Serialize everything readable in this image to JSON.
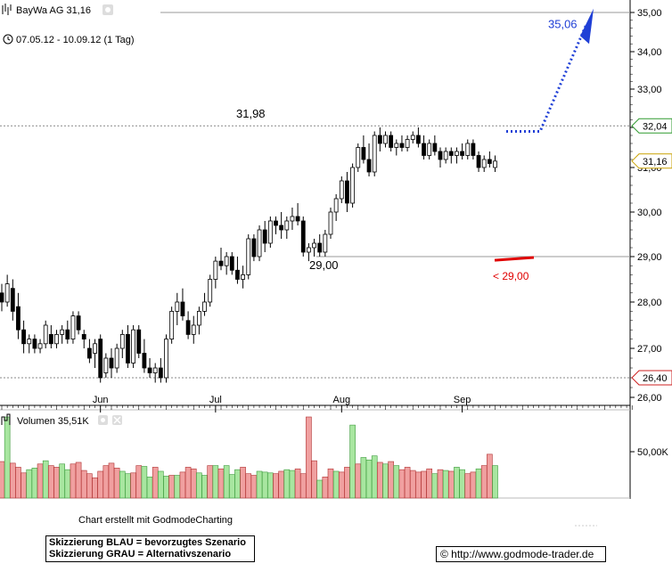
{
  "header": {
    "title": "BayWa AG 31,16",
    "date_range": "07.05.12 - 10.09.12 (1 Tag)",
    "volume_label": "Volumen 35,51K"
  },
  "footer": {
    "made_with": "Chart erstellt mit GodmodeCharting",
    "legend_blue": "Skizzierung BLAU = bevorzugtes Szenario",
    "legend_grey": "Skizzierung GRAU = Alternativszenario",
    "credit": "© http://www.godmode-trader.de"
  },
  "colors": {
    "up": "#ffffff",
    "down": "#000000",
    "vol_up": "#a8e6a0",
    "vol_down": "#f0a0a0",
    "blue": "#1f3fd6",
    "red": "#e00000",
    "marker_green": "#2e9a2e",
    "marker_red": "#cc2020",
    "marker_yellow": "#c8a000"
  },
  "chart_data": {
    "type": "candlestick",
    "title": "BayWa AG 31,16",
    "y_ticks": [
      "35,00",
      "34,00",
      "33,00",
      "32,00",
      "31,00",
      "30,00",
      "29,00",
      "28,00",
      "27,00",
      "26,00"
    ],
    "ylim": [
      26.0,
      35.0
    ],
    "x_labels": [
      {
        "label": "Jun",
        "index": 18
      },
      {
        "label": "Jul",
        "index": 39
      },
      {
        "label": "Aug",
        "index": 62
      },
      {
        "label": "Sep",
        "index": 84
      }
    ],
    "price_markers": [
      {
        "label": "32,04",
        "value": 32.04,
        "color": "green"
      },
      {
        "label": "31,16",
        "value": 31.16,
        "color": "yellow"
      },
      {
        "label": "26,40",
        "value": 26.4,
        "color": "red"
      }
    ],
    "annotations": [
      {
        "text": "31,98",
        "value": 31.98
      },
      {
        "text": "29,00",
        "value": 29.0
      },
      {
        "text": "35,06",
        "value": 35.06,
        "color": "blue"
      },
      {
        "text": "< 29,00",
        "value": 29.0,
        "color": "red"
      }
    ],
    "volume_tick": "50,00K",
    "volume_max": 100,
    "candles": [
      [
        28.2,
        28.4,
        27.8,
        28.0
      ],
      [
        28.0,
        28.6,
        27.9,
        28.4
      ],
      [
        28.3,
        28.5,
        27.6,
        27.8
      ],
      [
        27.9,
        28.2,
        27.2,
        27.4
      ],
      [
        27.4,
        27.6,
        26.9,
        27.1
      ],
      [
        27.1,
        27.3,
        26.9,
        27.2
      ],
      [
        27.2,
        27.3,
        26.9,
        27.0
      ],
      [
        27.0,
        27.2,
        26.9,
        27.1
      ],
      [
        27.1,
        27.6,
        27.0,
        27.5
      ],
      [
        27.3,
        27.5,
        27.0,
        27.1
      ],
      [
        27.1,
        27.4,
        27.0,
        27.3
      ],
      [
        27.3,
        27.5,
        27.1,
        27.4
      ],
      [
        27.4,
        27.6,
        27.1,
        27.2
      ],
      [
        27.2,
        27.8,
        27.1,
        27.7
      ],
      [
        27.7,
        27.8,
        27.3,
        27.4
      ],
      [
        27.3,
        27.4,
        27.0,
        27.2
      ],
      [
        27.0,
        27.2,
        26.7,
        26.8
      ],
      [
        26.9,
        27.2,
        26.6,
        27.1
      ],
      [
        27.2,
        27.3,
        26.3,
        26.4
      ],
      [
        26.5,
        26.9,
        26.4,
        26.8
      ],
      [
        26.8,
        27.0,
        26.4,
        26.6
      ],
      [
        26.6,
        27.1,
        26.5,
        27.0
      ],
      [
        27.0,
        27.4,
        26.8,
        27.3
      ],
      [
        27.3,
        27.5,
        26.6,
        26.7
      ],
      [
        26.7,
        27.5,
        26.6,
        27.4
      ],
      [
        27.4,
        27.5,
        26.8,
        26.9
      ],
      [
        26.9,
        27.2,
        26.5,
        26.6
      ],
      [
        26.6,
        26.8,
        26.4,
        26.5
      ],
      [
        26.5,
        26.7,
        26.3,
        26.6
      ],
      [
        26.6,
        26.8,
        26.3,
        26.4
      ],
      [
        26.4,
        27.3,
        26.3,
        27.2
      ],
      [
        27.2,
        27.9,
        27.1,
        27.8
      ],
      [
        27.8,
        28.2,
        27.5,
        28.0
      ],
      [
        28.0,
        28.3,
        27.6,
        27.7
      ],
      [
        27.6,
        27.8,
        27.2,
        27.3
      ],
      [
        27.3,
        27.7,
        27.1,
        27.5
      ],
      [
        27.5,
        27.9,
        27.3,
        27.8
      ],
      [
        27.8,
        28.2,
        27.7,
        28.0
      ],
      [
        28.0,
        28.6,
        27.9,
        28.5
      ],
      [
        28.5,
        29.0,
        28.3,
        28.9
      ],
      [
        28.9,
        29.2,
        28.7,
        28.8
      ],
      [
        28.8,
        29.1,
        28.6,
        29.0
      ],
      [
        29.0,
        29.1,
        28.6,
        28.7
      ],
      [
        28.7,
        29.0,
        28.4,
        28.5
      ],
      [
        28.5,
        28.8,
        28.3,
        28.6
      ],
      [
        28.6,
        29.5,
        28.5,
        29.4
      ],
      [
        29.4,
        29.5,
        28.9,
        29.0
      ],
      [
        29.0,
        29.7,
        28.9,
        29.6
      ],
      [
        29.6,
        29.8,
        29.1,
        29.3
      ],
      [
        29.3,
        29.9,
        29.2,
        29.8
      ],
      [
        29.8,
        29.9,
        29.5,
        29.7
      ],
      [
        29.7,
        30.0,
        29.4,
        29.6
      ],
      [
        29.6,
        29.9,
        29.4,
        29.8
      ],
      [
        29.8,
        30.1,
        29.6,
        29.9
      ],
      [
        29.9,
        30.2,
        29.7,
        29.8
      ],
      [
        29.8,
        29.9,
        29.0,
        29.1
      ],
      [
        29.1,
        29.3,
        28.9,
        29.2
      ],
      [
        29.2,
        29.4,
        29.0,
        29.3
      ],
      [
        29.3,
        29.5,
        29.0,
        29.1
      ],
      [
        29.1,
        29.6,
        29.0,
        29.5
      ],
      [
        29.5,
        30.1,
        29.4,
        30.0
      ],
      [
        30.0,
        30.4,
        29.8,
        30.3
      ],
      [
        30.3,
        30.8,
        30.2,
        30.7
      ],
      [
        30.7,
        30.9,
        30.0,
        30.2
      ],
      [
        30.2,
        31.1,
        30.1,
        31.0
      ],
      [
        31.0,
        31.6,
        30.9,
        31.5
      ],
      [
        31.5,
        31.8,
        31.1,
        31.2
      ],
      [
        31.2,
        31.6,
        30.8,
        30.9
      ],
      [
        30.9,
        31.9,
        30.8,
        31.8
      ],
      [
        31.8,
        32.0,
        31.4,
        31.6
      ],
      [
        31.6,
        31.9,
        31.5,
        31.8
      ],
      [
        31.8,
        31.9,
        31.4,
        31.5
      ],
      [
        31.5,
        31.7,
        31.3,
        31.6
      ],
      [
        31.6,
        31.8,
        31.4,
        31.5
      ],
      [
        31.5,
        31.8,
        31.4,
        31.7
      ],
      [
        31.7,
        31.9,
        31.6,
        31.8
      ],
      [
        31.8,
        32.0,
        31.5,
        31.6
      ],
      [
        31.6,
        31.8,
        31.2,
        31.3
      ],
      [
        31.3,
        31.7,
        31.2,
        31.6
      ],
      [
        31.6,
        31.8,
        31.3,
        31.4
      ],
      [
        31.4,
        31.5,
        31.0,
        31.2
      ],
      [
        31.2,
        31.5,
        31.1,
        31.4
      ],
      [
        31.4,
        31.5,
        31.1,
        31.3
      ],
      [
        31.3,
        31.5,
        31.1,
        31.4
      ],
      [
        31.4,
        31.6,
        31.2,
        31.3
      ],
      [
        31.3,
        31.7,
        31.2,
        31.6
      ],
      [
        31.6,
        31.7,
        31.2,
        31.3
      ],
      [
        31.3,
        31.4,
        30.9,
        31.0
      ],
      [
        31.0,
        31.3,
        30.9,
        31.2
      ],
      [
        31.2,
        31.4,
        31.0,
        31.1
      ],
      [
        31.0,
        31.3,
        30.9,
        31.16
      ]
    ],
    "volume": [
      [
        45,
        0
      ],
      [
        100,
        1
      ],
      [
        43,
        0
      ],
      [
        38,
        0
      ],
      [
        31,
        0
      ],
      [
        35,
        1
      ],
      [
        37,
        1
      ],
      [
        42,
        0
      ],
      [
        46,
        1
      ],
      [
        40,
        0
      ],
      [
        38,
        0
      ],
      [
        42,
        1
      ],
      [
        35,
        1
      ],
      [
        42,
        0
      ],
      [
        44,
        0
      ],
      [
        34,
        0
      ],
      [
        30,
        0
      ],
      [
        25,
        0
      ],
      [
        33,
        0
      ],
      [
        40,
        0
      ],
      [
        43,
        0
      ],
      [
        37,
        0
      ],
      [
        33,
        1
      ],
      [
        30,
        1
      ],
      [
        31,
        0
      ],
      [
        40,
        0
      ],
      [
        39,
        1
      ],
      [
        26,
        1
      ],
      [
        38,
        0
      ],
      [
        33,
        1
      ],
      [
        27,
        1
      ],
      [
        28,
        0
      ],
      [
        28,
        1
      ],
      [
        32,
        0
      ],
      [
        38,
        0
      ],
      [
        36,
        0
      ],
      [
        31,
        1
      ],
      [
        28,
        1
      ],
      [
        40,
        0
      ],
      [
        40,
        1
      ],
      [
        36,
        0
      ],
      [
        40,
        1
      ],
      [
        29,
        1
      ],
      [
        35,
        1
      ],
      [
        38,
        0
      ],
      [
        30,
        0
      ],
      [
        28,
        0
      ],
      [
        33,
        1
      ],
      [
        32,
        1
      ],
      [
        31,
        1
      ],
      [
        30,
        0
      ],
      [
        33,
        0
      ],
      [
        35,
        1
      ],
      [
        34,
        1
      ],
      [
        36,
        0
      ],
      [
        30,
        0
      ],
      [
        100,
        0
      ],
      [
        46,
        0
      ],
      [
        22,
        1
      ],
      [
        26,
        0
      ],
      [
        36,
        0
      ],
      [
        33,
        1
      ],
      [
        32,
        0
      ],
      [
        38,
        0
      ],
      [
        90,
        1
      ],
      [
        42,
        0
      ],
      [
        50,
        1
      ],
      [
        47,
        1
      ],
      [
        52,
        1
      ],
      [
        44,
        0
      ],
      [
        42,
        1
      ],
      [
        45,
        0
      ],
      [
        40,
        1
      ],
      [
        35,
        0
      ],
      [
        38,
        0
      ],
      [
        34,
        0
      ],
      [
        32,
        0
      ],
      [
        33,
        0
      ],
      [
        36,
        0
      ],
      [
        30,
        1
      ],
      [
        35,
        0
      ],
      [
        34,
        1
      ],
      [
        33,
        0
      ],
      [
        38,
        1
      ],
      [
        35,
        1
      ],
      [
        30,
        0
      ],
      [
        32,
        0
      ],
      [
        36,
        1
      ],
      [
        40,
        0
      ],
      [
        54,
        0
      ],
      [
        40,
        1
      ]
    ],
    "overlay_lines": {
      "dashed_top": 35.0,
      "dashed_mid": 32.04,
      "grey_support": 29.0,
      "dashed_low": 26.4
    }
  }
}
